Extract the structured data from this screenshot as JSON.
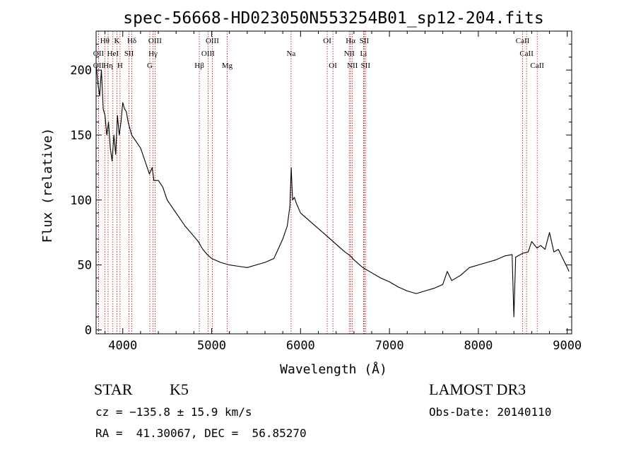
{
  "chart_data": {
    "type": "line",
    "title": "spec-56668-HD023050N553254B01_sp12-204.fits",
    "xlabel": "Wavelength (Å)",
    "ylabel": "Flux (relative)",
    "xlim": [
      3700,
      9050
    ],
    "ylim": [
      -3,
      230
    ],
    "xticks": [
      4000,
      5000,
      6000,
      7000,
      8000,
      9000
    ],
    "yticks": [
      0,
      50,
      100,
      150,
      200
    ],
    "grid": false,
    "series": [
      {
        "color": "#000000",
        "x": [
          3700,
          3720,
          3740,
          3760,
          3780,
          3800,
          3820,
          3840,
          3860,
          3880,
          3900,
          3920,
          3940,
          3960,
          3980,
          4000,
          4020,
          4040,
          4060,
          4080,
          4100,
          4150,
          4200,
          4250,
          4300,
          4330,
          4350,
          4400,
          4450,
          4500,
          4600,
          4700,
          4800,
          4850,
          4900,
          4950,
          5000,
          5100,
          5200,
          5300,
          5400,
          5500,
          5600,
          5700,
          5800,
          5850,
          5880,
          5895,
          5910,
          5930,
          5950,
          6000,
          6100,
          6200,
          6300,
          6400,
          6500,
          6560,
          6600,
          6700,
          6800,
          6900,
          7000,
          7100,
          7200,
          7300,
          7400,
          7500,
          7600,
          7650,
          7700,
          7800,
          7900,
          8000,
          8100,
          8200,
          8300,
          8380,
          8400,
          8420,
          8500,
          8560,
          8600,
          8660,
          8700,
          8750,
          8800,
          8850,
          8900,
          8950,
          9000,
          9020
        ],
        "y": [
          205,
          190,
          180,
          200,
          170,
          165,
          150,
          160,
          140,
          130,
          150,
          135,
          165,
          150,
          160,
          175,
          170,
          168,
          160,
          155,
          150,
          145,
          140,
          130,
          120,
          125,
          115,
          115,
          110,
          100,
          90,
          80,
          72,
          68,
          62,
          58,
          55,
          52,
          50,
          49,
          48,
          50,
          52,
          55,
          70,
          80,
          95,
          125,
          100,
          102,
          98,
          90,
          84,
          78,
          72,
          66,
          60,
          57,
          54,
          48,
          44,
          40,
          37,
          33,
          30,
          28,
          30,
          32,
          35,
          45,
          38,
          42,
          48,
          50,
          52,
          54,
          57,
          58,
          10,
          56,
          59,
          60,
          68,
          63,
          65,
          62,
          75,
          60,
          62,
          55,
          48,
          45
        ]
      }
    ],
    "lines": [
      {
        "name": "Hθ",
        "x": 3798,
        "row": 0
      },
      {
        "name": "K",
        "x": 3934,
        "row": 0
      },
      {
        "name": "Hδ",
        "x": 4102,
        "row": 0
      },
      {
        "name": "OIII",
        "x": 4363,
        "row": 0
      },
      {
        "name": "OIII",
        "x": 5007,
        "row": 0
      },
      {
        "name": "OI",
        "x": 6300,
        "row": 0
      },
      {
        "name": "Hα",
        "x": 6563,
        "row": 0
      },
      {
        "name": "SII",
        "x": 6717,
        "row": 0
      },
      {
        "name": "CaII",
        "x": 8498,
        "row": 0
      },
      {
        "name": "OII",
        "x": 3727,
        "row": 1
      },
      {
        "name": "HeI",
        "x": 3889,
        "row": 1
      },
      {
        "name": "SII",
        "x": 4070,
        "row": 1
      },
      {
        "name": "Hγ",
        "x": 4340,
        "row": 1
      },
      {
        "name": "OIII",
        "x": 4959,
        "row": 1
      },
      {
        "name": "Na",
        "x": 5893,
        "row": 1
      },
      {
        "name": "NII",
        "x": 6548,
        "row": 1
      },
      {
        "name": "Li",
        "x": 6708,
        "row": 1
      },
      {
        "name": "CaII",
        "x": 8542,
        "row": 1
      },
      {
        "name": "OII",
        "x": 3727,
        "row": 2
      },
      {
        "name": "Hη",
        "x": 3835,
        "row": 2
      },
      {
        "name": "H",
        "x": 3969,
        "row": 2
      },
      {
        "name": "G",
        "x": 4304,
        "row": 2
      },
      {
        "name": "Hβ",
        "x": 4861,
        "row": 2
      },
      {
        "name": "Mg",
        "x": 5175,
        "row": 2
      },
      {
        "name": "OI",
        "x": 6364,
        "row": 2
      },
      {
        "name": "NII",
        "x": 6583,
        "row": 2
      },
      {
        "name": "SII",
        "x": 6731,
        "row": 2
      },
      {
        "name": "CaII",
        "x": 8662,
        "row": 2
      }
    ]
  },
  "info": {
    "class": "STAR",
    "subclass": "K5",
    "survey": "LAMOST DR3",
    "cz": "cz = −135.8 ± 15.9 km/s",
    "obs_date": "Obs-Date: 20140110",
    "coords": "RA =  41.30067, DEC =  56.85270"
  },
  "colors": {
    "axis": "#000000",
    "marker_line": "#c00000"
  }
}
